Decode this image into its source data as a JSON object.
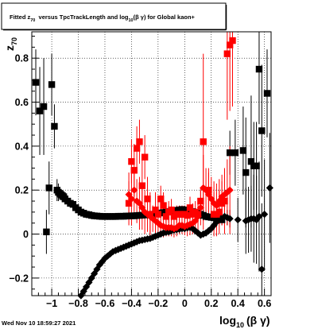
{
  "chart_data": {
    "type": "scatter",
    "title": {
      "pre": "Fitted  z",
      "pre_sub": "70",
      "mid": "  versus TpcTrackLength and log",
      "mid_sub": "10",
      "post": "(β γ) for Global kaon+"
    },
    "xlabel": {
      "main": "log",
      "sub": "10",
      "tail": "(β γ)"
    },
    "ylabel": {
      "main": "z",
      "sub": "70"
    },
    "footer": "Wed Nov 10 18:59:27 2021",
    "xlim": [
      -1.15,
      0.65
    ],
    "ylim": [
      -0.28,
      0.92
    ],
    "x_ticks": [
      {
        "v": -1.0,
        "label": "−1"
      },
      {
        "v": -0.8,
        "label": "−0.8"
      },
      {
        "v": -0.6,
        "label": "−0.6"
      },
      {
        "v": -0.4,
        "label": "−0.4"
      },
      {
        "v": -0.2,
        "label": "−0.2"
      },
      {
        "v": 0.0,
        "label": "0"
      },
      {
        "v": 0.2,
        "label": "0.2"
      },
      {
        "v": 0.4,
        "label": "0.4"
      },
      {
        "v": 0.6,
        "label": "0.6"
      }
    ],
    "y_ticks": [
      {
        "v": -0.2,
        "label": "−0.2"
      },
      {
        "v": 0.0,
        "label": "0"
      },
      {
        "v": 0.2,
        "label": "0.2"
      },
      {
        "v": 0.4,
        "label": "0.4"
      },
      {
        "v": 0.6,
        "label": "0.6"
      },
      {
        "v": 0.8,
        "label": "0.8"
      }
    ],
    "grid": true,
    "series": [
      {
        "marker": "square",
        "color": "#000000",
        "points": [
          [
            -1.12,
            0.69,
            0.15
          ],
          [
            -1.09,
            0.56,
            0.2
          ],
          [
            -1.06,
            0.58,
            0.22
          ],
          [
            -1.04,
            0.01,
            0.1
          ],
          [
            -1.02,
            0.21,
            0.12
          ],
          [
            -1.0,
            0.68,
            0.14
          ],
          [
            -0.98,
            0.49,
            0.1
          ],
          [
            -0.96,
            0.2,
            0.05
          ],
          [
            -0.95,
            0.19,
            0.04
          ],
          [
            -0.94,
            0.185,
            0.03
          ],
          [
            -0.93,
            0.18,
            0.025
          ],
          [
            -0.92,
            0.175,
            0.02
          ],
          [
            -0.91,
            0.17,
            0.015
          ],
          [
            -0.9,
            0.16,
            0.01
          ],
          [
            -0.88,
            0.15,
            0.008
          ],
          [
            -0.86,
            0.14,
            0.006
          ],
          [
            -0.84,
            0.135,
            0.005
          ],
          [
            -0.82,
            0.12,
            0.004
          ],
          [
            -0.8,
            0.11,
            0.003
          ],
          [
            -0.78,
            0.1,
            0.003
          ],
          [
            -0.76,
            0.095,
            0.003
          ],
          [
            -0.74,
            0.09,
            0.003
          ],
          [
            -0.72,
            0.088,
            0.003
          ],
          [
            -0.7,
            0.085,
            0.003
          ],
          [
            -0.68,
            0.083,
            0.003
          ],
          [
            -0.66,
            0.082,
            0.003
          ],
          [
            -0.64,
            0.081,
            0.003
          ],
          [
            -0.62,
            0.08,
            0.003
          ],
          [
            -0.6,
            0.08,
            0.003
          ],
          [
            -0.58,
            0.08,
            0.003
          ],
          [
            -0.56,
            0.08,
            0.003
          ],
          [
            -0.54,
            0.08,
            0.003
          ],
          [
            -0.52,
            0.08,
            0.003
          ],
          [
            -0.5,
            0.081,
            0.003
          ],
          [
            -0.48,
            0.081,
            0.003
          ],
          [
            -0.46,
            0.081,
            0.003
          ],
          [
            -0.44,
            0.082,
            0.003
          ],
          [
            -0.42,
            0.082,
            0.003
          ],
          [
            -0.4,
            0.083,
            0.003
          ],
          [
            -0.38,
            0.083,
            0.003
          ],
          [
            -0.36,
            0.084,
            0.003
          ],
          [
            -0.34,
            0.085,
            0.003
          ],
          [
            -0.32,
            0.086,
            0.003
          ],
          [
            -0.3,
            0.087,
            0.003
          ],
          [
            -0.28,
            0.088,
            0.003
          ],
          [
            -0.26,
            0.089,
            0.003
          ],
          [
            -0.24,
            0.09,
            0.003
          ],
          [
            -0.22,
            0.092,
            0.004
          ],
          [
            -0.2,
            0.094,
            0.004
          ],
          [
            -0.18,
            0.096,
            0.004
          ],
          [
            -0.16,
            0.098,
            0.004
          ],
          [
            -0.14,
            0.1,
            0.005
          ],
          [
            -0.12,
            0.102,
            0.005
          ],
          [
            -0.1,
            0.104,
            0.005
          ],
          [
            -0.08,
            0.106,
            0.005
          ],
          [
            -0.06,
            0.108,
            0.006
          ],
          [
            -0.04,
            0.11,
            0.006
          ],
          [
            -0.02,
            0.112,
            0.006
          ],
          [
            0.0,
            0.11,
            0.007
          ],
          [
            0.02,
            0.108,
            0.008
          ],
          [
            0.04,
            0.105,
            0.009
          ],
          [
            0.06,
            0.102,
            0.01
          ],
          [
            0.08,
            0.098,
            0.011
          ],
          [
            0.1,
            0.095,
            0.012
          ],
          [
            0.12,
            0.09,
            0.013
          ],
          [
            0.14,
            0.085,
            0.014
          ],
          [
            0.16,
            0.08,
            0.015
          ],
          [
            0.18,
            0.078,
            0.016
          ],
          [
            0.2,
            0.076,
            0.017
          ],
          [
            0.22,
            0.074,
            0.018
          ],
          [
            0.24,
            0.07,
            0.02
          ],
          [
            0.26,
            0.068,
            0.022
          ],
          [
            0.28,
            0.065,
            0.025
          ],
          [
            0.34,
            0.37,
            0.1
          ],
          [
            0.38,
            0.37,
            0.15
          ],
          [
            0.44,
            0.38,
            0.2
          ],
          [
            0.46,
            0.28,
            0.25
          ],
          [
            0.5,
            0.33,
            0.3
          ],
          [
            0.52,
            0.31,
            0.2
          ],
          [
            0.54,
            0.31,
            0.2
          ],
          [
            0.56,
            0.75,
            0.25
          ],
          [
            0.58,
            0.47,
            0.3
          ],
          [
            0.62,
            0.64,
            0.2
          ]
        ]
      },
      {
        "marker": "diamond",
        "color": "#000000",
        "points": [
          [
            -0.78,
            -0.28,
            0.005
          ],
          [
            -0.76,
            -0.26,
            0.005
          ],
          [
            -0.74,
            -0.24,
            0.005
          ],
          [
            -0.72,
            -0.22,
            0.005
          ],
          [
            -0.7,
            -0.2,
            0.005
          ],
          [
            -0.68,
            -0.18,
            0.005
          ],
          [
            -0.66,
            -0.16,
            0.005
          ],
          [
            -0.64,
            -0.14,
            0.005
          ],
          [
            -0.62,
            -0.125,
            0.005
          ],
          [
            -0.6,
            -0.11,
            0.005
          ],
          [
            -0.58,
            -0.1,
            0.005
          ],
          [
            -0.56,
            -0.09,
            0.005
          ],
          [
            -0.54,
            -0.08,
            0.005
          ],
          [
            -0.52,
            -0.075,
            0.005
          ],
          [
            -0.5,
            -0.07,
            0.005
          ],
          [
            -0.48,
            -0.065,
            0.005
          ],
          [
            -0.46,
            -0.06,
            0.005
          ],
          [
            -0.44,
            -0.055,
            0.005
          ],
          [
            -0.42,
            -0.05,
            0.005
          ],
          [
            -0.4,
            -0.045,
            0.005
          ],
          [
            -0.38,
            -0.04,
            0.005
          ],
          [
            -0.36,
            -0.035,
            0.005
          ],
          [
            -0.34,
            -0.03,
            0.005
          ],
          [
            -0.32,
            -0.028,
            0.005
          ],
          [
            -0.3,
            -0.025,
            0.005
          ],
          [
            -0.28,
            -0.022,
            0.005
          ],
          [
            -0.26,
            -0.02,
            0.005
          ],
          [
            -0.24,
            -0.015,
            0.005
          ],
          [
            -0.22,
            -0.01,
            0.005
          ],
          [
            -0.2,
            -0.005,
            0.005
          ],
          [
            -0.18,
            0.0,
            0.005
          ],
          [
            -0.16,
            0.005,
            0.005
          ],
          [
            -0.14,
            0.008,
            0.006
          ],
          [
            -0.12,
            0.01,
            0.006
          ],
          [
            -0.1,
            0.015,
            0.006
          ],
          [
            -0.08,
            0.018,
            0.006
          ],
          [
            -0.06,
            0.02,
            0.006
          ],
          [
            -0.04,
            0.022,
            0.006
          ],
          [
            -0.02,
            0.025,
            0.007
          ],
          [
            0.0,
            0.025,
            0.007
          ],
          [
            0.02,
            0.028,
            0.008
          ],
          [
            0.04,
            0.03,
            0.008
          ],
          [
            0.06,
            0.025,
            0.009
          ],
          [
            0.08,
            0.015,
            0.01
          ],
          [
            0.1,
            0.005,
            0.011
          ],
          [
            0.12,
            -0.005,
            0.012
          ],
          [
            0.14,
            0.0,
            0.013
          ],
          [
            0.16,
            0.005,
            0.015
          ],
          [
            0.18,
            0.015,
            0.016
          ],
          [
            0.2,
            0.025,
            0.018
          ],
          [
            0.22,
            0.04,
            0.02
          ],
          [
            0.24,
            0.055,
            0.022
          ],
          [
            0.26,
            0.07,
            0.024
          ],
          [
            0.28,
            0.075,
            0.025
          ],
          [
            0.3,
            0.08,
            0.03
          ],
          [
            0.32,
            0.075,
            0.035
          ],
          [
            0.34,
            0.07,
            0.04
          ],
          [
            0.4,
            0.065,
            0.1
          ],
          [
            0.46,
            0.06,
            0.15
          ],
          [
            0.48,
            0.065,
            0.15
          ],
          [
            0.5,
            0.07,
            0.15
          ],
          [
            0.52,
            0.07,
            0.2
          ],
          [
            0.54,
            0.065,
            0.2
          ],
          [
            0.56,
            0.08,
            0.25
          ],
          [
            0.58,
            -0.16,
            0.3
          ],
          [
            0.6,
            0.09,
            0.25
          ],
          [
            0.64,
            0.21,
            0.25
          ]
        ]
      },
      {
        "marker": "square",
        "color": "#ff0000",
        "points": [
          [
            -0.42,
            0.14,
            0.1
          ],
          [
            -0.4,
            0.33,
            0.1
          ],
          [
            -0.38,
            0.29,
            0.12
          ],
          [
            -0.36,
            0.39,
            0.1
          ],
          [
            -0.34,
            0.42,
            0.1
          ],
          [
            -0.32,
            0.22,
            0.12
          ],
          [
            -0.3,
            0.35,
            0.1
          ],
          [
            -0.28,
            0.16,
            0.1
          ],
          [
            -0.26,
            0.09,
            0.1
          ],
          [
            -0.22,
            0.11,
            0.08
          ],
          [
            -0.2,
            0.09,
            0.06
          ],
          [
            -0.18,
            0.16,
            0.06
          ],
          [
            -0.16,
            0.13,
            0.06
          ],
          [
            -0.14,
            0.08,
            0.05
          ],
          [
            -0.12,
            0.1,
            0.05
          ],
          [
            -0.1,
            0.11,
            0.05
          ],
          [
            -0.08,
            0.08,
            0.04
          ],
          [
            -0.06,
            0.09,
            0.04
          ],
          [
            -0.04,
            0.09,
            0.04
          ],
          [
            -0.02,
            0.09,
            0.04
          ],
          [
            0.0,
            0.09,
            0.04
          ],
          [
            0.02,
            0.085,
            0.04
          ],
          [
            0.04,
            0.12,
            0.05
          ],
          [
            0.06,
            0.09,
            0.05
          ],
          [
            0.08,
            0.1,
            0.05
          ],
          [
            0.1,
            0.09,
            0.05
          ],
          [
            0.12,
            0.15,
            0.06
          ],
          [
            0.14,
            0.42,
            0.4
          ],
          [
            0.18,
            0.2,
            0.1
          ],
          [
            0.22,
            0.09,
            0.1
          ],
          [
            0.24,
            0.09,
            0.1
          ],
          [
            0.26,
            0.1,
            0.1
          ],
          [
            0.28,
            0.14,
            0.1
          ],
          [
            0.3,
            0.15,
            0.15
          ],
          [
            0.32,
            0.82,
            0.3
          ],
          [
            0.34,
            0.86,
            0.3
          ],
          [
            0.36,
            0.88,
            0.3
          ]
        ]
      },
      {
        "marker": "diamond",
        "color": "#ff0000",
        "points": [
          [
            -0.42,
            0.18,
            0.1
          ],
          [
            -0.4,
            0.16,
            0.12
          ],
          [
            -0.38,
            0.2,
            0.1
          ],
          [
            -0.36,
            0.15,
            0.1
          ],
          [
            -0.34,
            0.14,
            0.12
          ],
          [
            -0.32,
            0.12,
            0.1
          ],
          [
            -0.3,
            0.1,
            0.1
          ],
          [
            -0.28,
            0.09,
            0.08
          ],
          [
            -0.26,
            0.08,
            0.08
          ],
          [
            -0.24,
            0.07,
            0.06
          ],
          [
            -0.22,
            0.06,
            0.06
          ],
          [
            -0.2,
            0.05,
            0.05
          ],
          [
            -0.18,
            0.04,
            0.05
          ],
          [
            -0.16,
            0.035,
            0.05
          ],
          [
            -0.14,
            0.03,
            0.04
          ],
          [
            -0.12,
            0.03,
            0.04
          ],
          [
            -0.1,
            0.03,
            0.04
          ],
          [
            -0.08,
            0.025,
            0.04
          ],
          [
            -0.06,
            0.03,
            0.04
          ],
          [
            -0.04,
            0.04,
            0.04
          ],
          [
            -0.02,
            0.04,
            0.04
          ],
          [
            0.0,
            0.035,
            0.04
          ],
          [
            0.02,
            0.04,
            0.05
          ],
          [
            0.04,
            0.045,
            0.05
          ],
          [
            0.06,
            0.05,
            0.05
          ],
          [
            0.08,
            0.06,
            0.05
          ],
          [
            0.1,
            0.08,
            0.06
          ],
          [
            0.12,
            0.12,
            0.08
          ],
          [
            0.14,
            0.21,
            0.15
          ],
          [
            0.16,
            0.2,
            0.1
          ],
          [
            0.18,
            0.18,
            0.1
          ],
          [
            0.2,
            0.16,
            0.1
          ],
          [
            0.22,
            0.14,
            0.1
          ],
          [
            0.24,
            0.13,
            0.1
          ],
          [
            0.26,
            0.15,
            0.1
          ],
          [
            0.28,
            0.17,
            0.1
          ],
          [
            0.3,
            0.18,
            0.12
          ],
          [
            0.32,
            0.19,
            0.15
          ],
          [
            0.34,
            0.2,
            0.2
          ]
        ]
      }
    ]
  }
}
